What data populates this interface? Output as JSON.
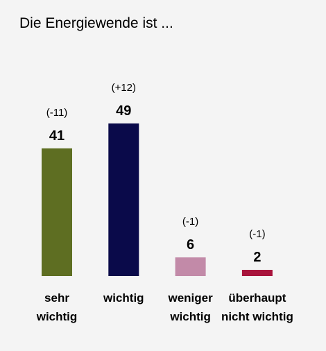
{
  "chart_data": {
    "type": "bar",
    "title": "Die Energiewende ist ...",
    "categories": [
      [
        "sehr",
        "wichtig"
      ],
      [
        "wichtig"
      ],
      [
        "weniger",
        "wichtig"
      ],
      [
        "überhaupt",
        "nicht wichtig"
      ]
    ],
    "values": [
      41,
      49,
      6,
      2
    ],
    "changes": [
      "(-11)",
      "(+12)",
      "(-1)",
      "(-1)"
    ],
    "colors": [
      "#5e6e22",
      "#0a0a4a",
      "#c28aa8",
      "#a8143c"
    ]
  }
}
